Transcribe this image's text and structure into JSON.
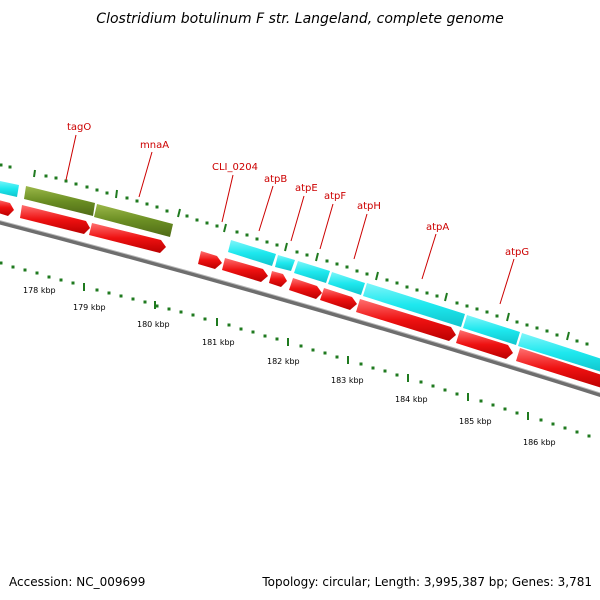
{
  "title": "Clostridium botulinum F str. Langeland, complete genome",
  "footer": {
    "accession": "Accession: NC_009699",
    "topology": "Topology: circular; Length: 3,995,387 bp; Genes: 3,781"
  },
  "colors": {
    "gene_label": "#cc0000",
    "cds_arrow": "#ee1111",
    "gene_cyan": "#1ee8ee",
    "gene_olive": "#6b8e23",
    "backbone": "#6e6e6e",
    "tick": "#1f7a1f"
  },
  "gene_labels": [
    "tagO",
    "mnaA",
    "CLI_0204",
    "atpB",
    "atpE",
    "atpF",
    "atpH",
    "atpA",
    "atpG"
  ],
  "scale_labels": [
    "178 kbp",
    "179 kbp",
    "180 kbp",
    "181 kbp",
    "182 kbp",
    "183 kbp",
    "184 kbp",
    "185 kbp",
    "186 kbp"
  ]
}
